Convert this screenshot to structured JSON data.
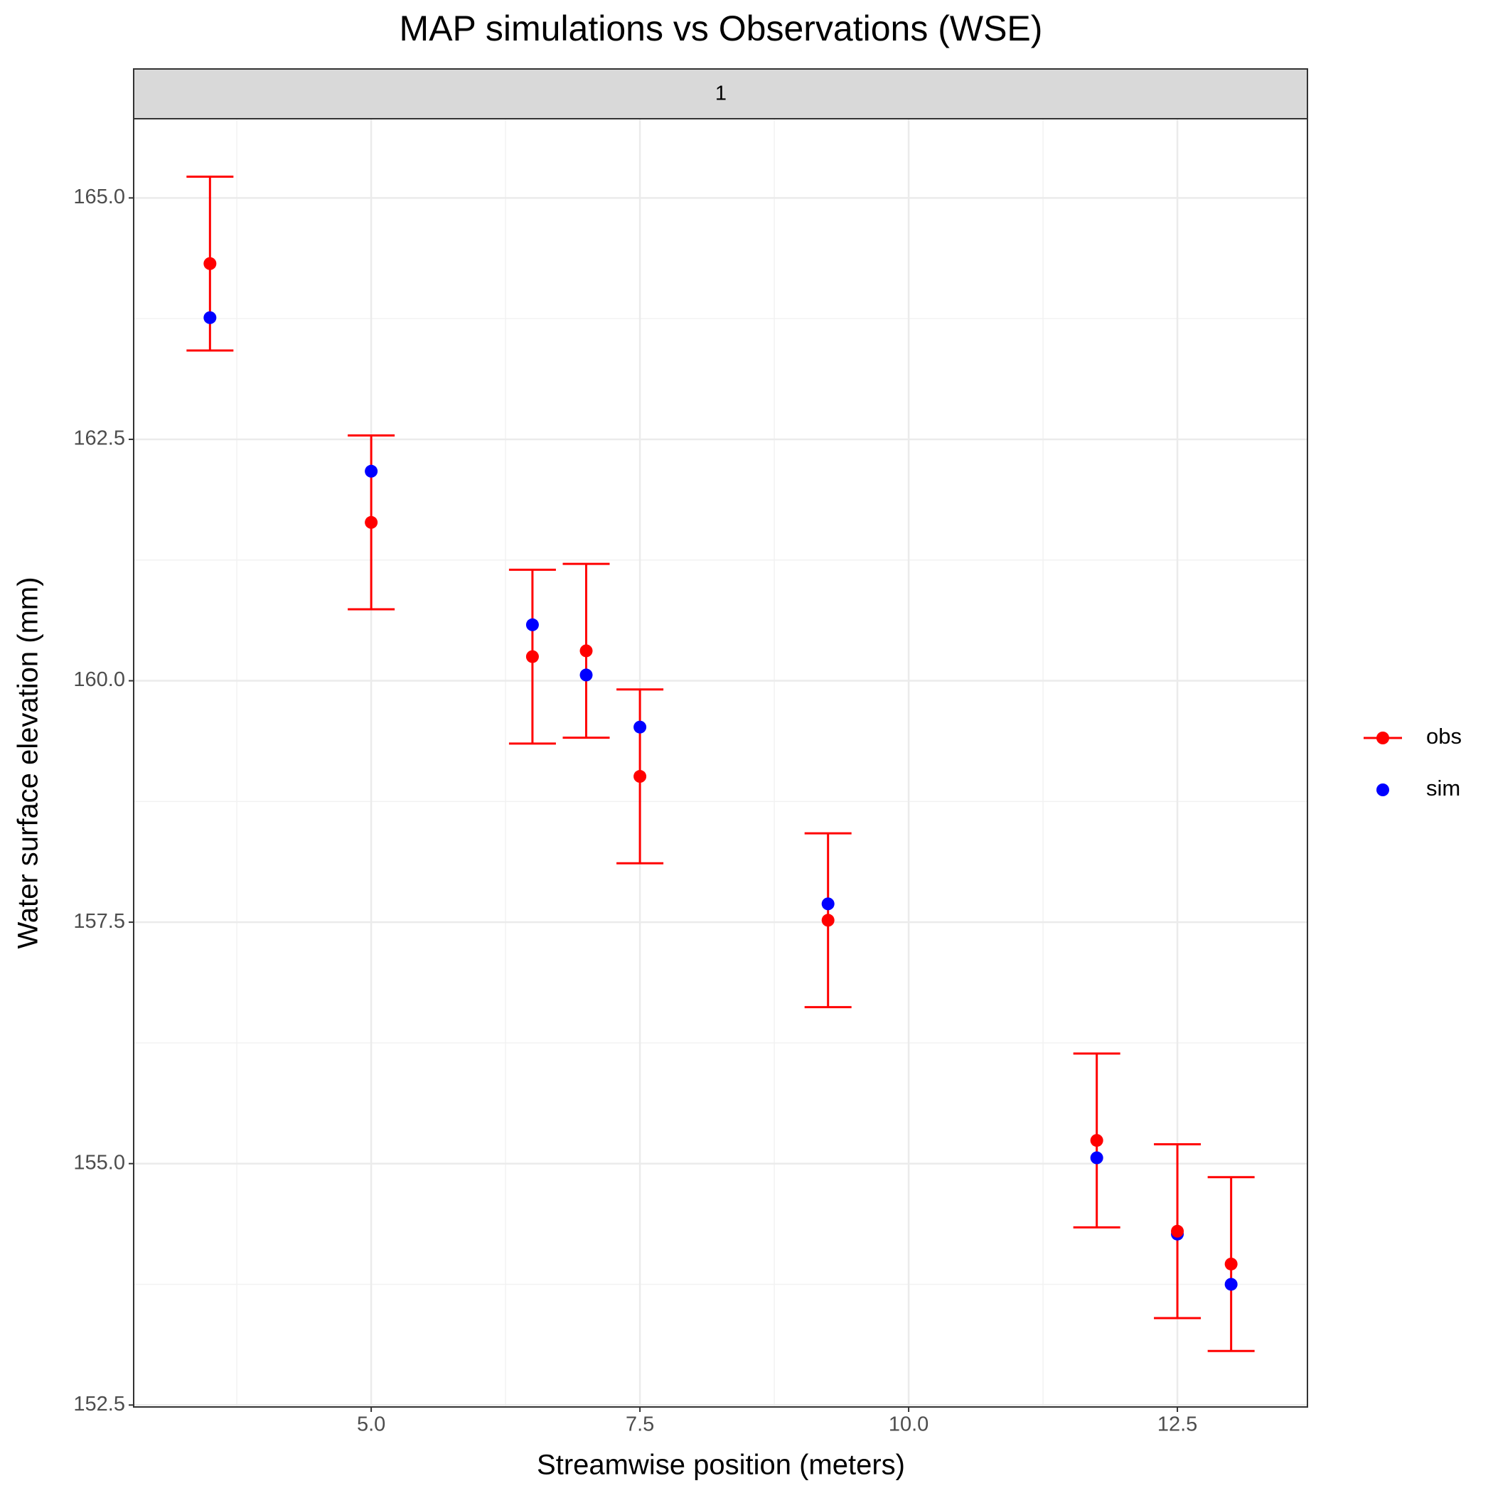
{
  "chart_data": {
    "type": "scatter",
    "title": "MAP simulations vs Observations (WSE)",
    "facet_label": "1",
    "x_label": "Streamwise position (meters)",
    "y_label": "Water surface elevation (mm)",
    "x": [
      3.5,
      5,
      6.5,
      7,
      7.5,
      9.25,
      11.75,
      12.5,
      13
    ],
    "series": [
      {
        "name": "obs",
        "color": "#ff0000",
        "values": [
          164.32,
          161.64,
          160.25,
          160.31,
          159.01,
          157.52,
          155.24,
          154.3,
          153.96
        ],
        "errors": [
          0.9,
          0.9,
          0.9,
          0.9,
          0.9,
          0.9,
          0.9,
          0.9,
          0.9
        ]
      },
      {
        "name": "sim",
        "color": "#0000ff",
        "values": [
          163.76,
          162.17,
          160.58,
          160.06,
          159.52,
          157.69,
          155.06,
          154.27,
          153.75
        ]
      }
    ],
    "xlim": [
      2.79,
      13.71
    ],
    "ylim": [
      152.48,
      165.82
    ],
    "xticks": [
      {
        "value": 5,
        "label": "5.0"
      },
      7.5,
      {
        "value": 10,
        "label": "10.0"
      },
      12.5
    ],
    "yticks": [
      {
        "value": 152.5,
        "label": "152.5"
      },
      {
        "value": 155,
        "label": "155.0"
      },
      {
        "value": 157.5,
        "label": "157.5"
      },
      {
        "value": 160,
        "label": "160.0"
      },
      {
        "value": 162.5,
        "label": "162.5"
      },
      {
        "value": 165,
        "label": "165.0"
      }
    ],
    "grid": true
  }
}
